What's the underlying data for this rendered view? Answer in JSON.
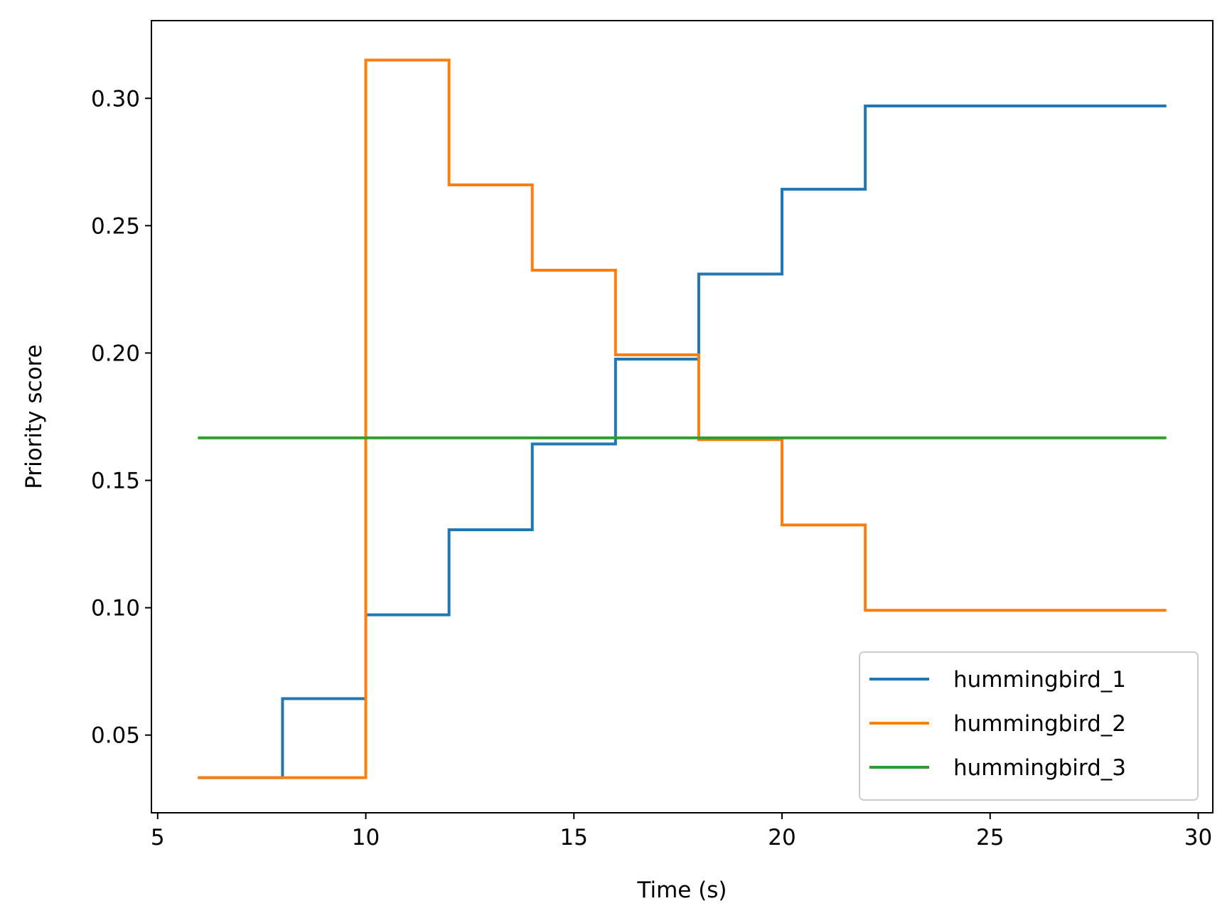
{
  "chart_data": {
    "type": "line",
    "step": "post",
    "xlabel": "Time (s)",
    "ylabel": "Priority score",
    "xlim": [
      4.85,
      30.35
    ],
    "ylim": [
      0.0195,
      0.3305
    ],
    "xticks": [
      5,
      10,
      15,
      20,
      25,
      30
    ],
    "yticks": [
      0.05,
      0.1,
      0.15,
      0.2,
      0.25,
      0.3
    ],
    "xtick_labels": [
      "5",
      "10",
      "15",
      "20",
      "25",
      "30"
    ],
    "ytick_labels": [
      "0.05",
      "0.10",
      "0.15",
      "0.20",
      "0.25",
      "0.30"
    ],
    "grid": false,
    "legend_position": "lower-right",
    "series": [
      {
        "name": "hummingbird_1",
        "color": "#1f77b4",
        "x": [
          6,
          8,
          10,
          12,
          14,
          16,
          18,
          20,
          22,
          29.2
        ],
        "y": [
          0.0333,
          0.0643,
          0.0972,
          0.1306,
          0.1643,
          0.1976,
          0.231,
          0.2643,
          0.297,
          0.297
        ]
      },
      {
        "name": "hummingbird_2",
        "color": "#ff7f0e",
        "x": [
          6,
          8,
          10,
          12,
          14,
          16,
          18,
          20,
          22,
          29.2
        ],
        "y": [
          0.0333,
          0.0333,
          0.315,
          0.266,
          0.2325,
          0.1993,
          0.166,
          0.1325,
          0.099,
          0.099
        ]
      },
      {
        "name": "hummingbird_3",
        "color": "#2ca02c",
        "x": [
          6,
          29.2
        ],
        "y": [
          0.1667,
          0.1667
        ]
      }
    ]
  }
}
